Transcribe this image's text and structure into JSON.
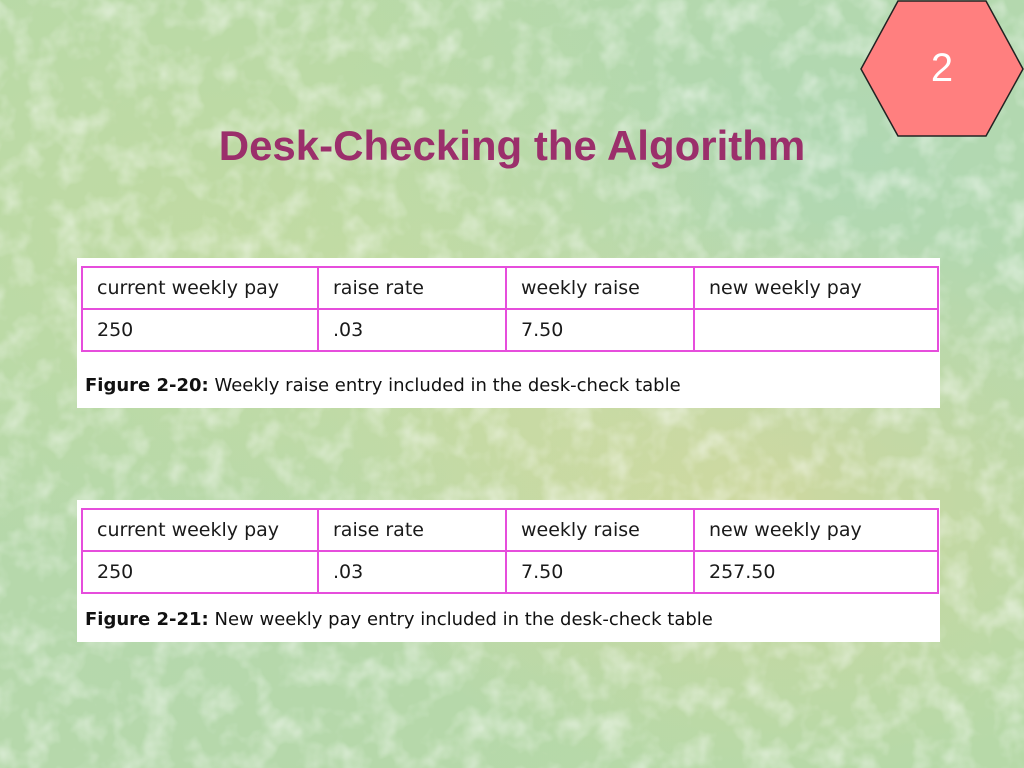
{
  "slide": {
    "title": "Desk-Checking the Algorithm",
    "page_number": "2"
  },
  "colors": {
    "title": "#9b2f6b",
    "badge_fill": "#ff7f7f",
    "table_border": "#e64ddc"
  },
  "figures": [
    {
      "headers": [
        "current weekly pay",
        "raise rate",
        "weekly raise",
        "new weekly pay"
      ],
      "row": [
        "250",
        ".03",
        "7.50",
        ""
      ],
      "caption_label": "Figure 2-20:",
      "caption_text": " Weekly raise entry included in the desk-check table"
    },
    {
      "headers": [
        "current weekly pay",
        "raise rate",
        "weekly raise",
        "new weekly pay"
      ],
      "row": [
        "250",
        ".03",
        "7.50",
        "257.50"
      ],
      "caption_label": "Figure 2-21:",
      "caption_text": " New weekly pay entry included in the desk-check table"
    }
  ]
}
